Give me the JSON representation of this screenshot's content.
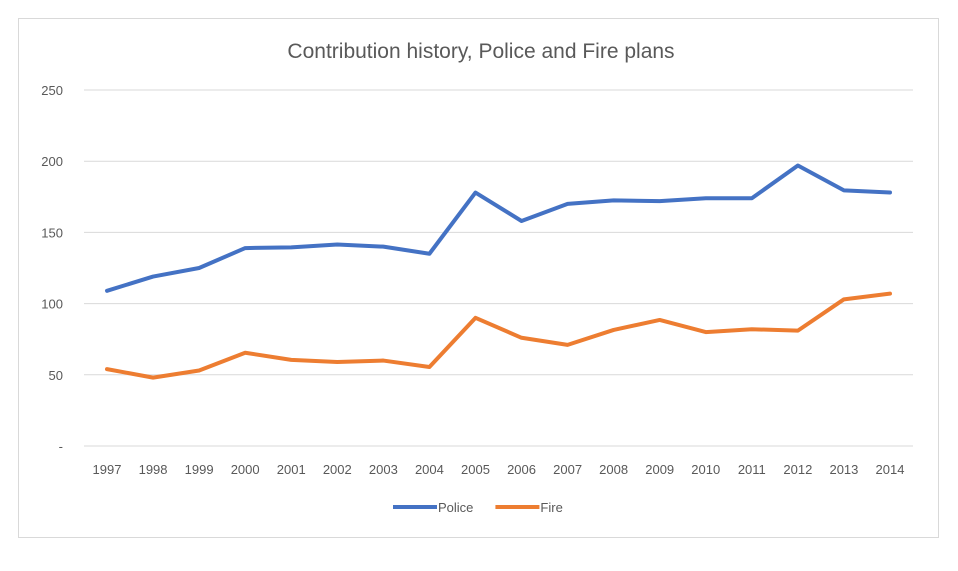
{
  "chart_data": {
    "type": "line",
    "title": "Contribution history, Police and Fire plans",
    "xlabel": "",
    "ylabel": "",
    "categories": [
      "1997",
      "1998",
      "1999",
      "2000",
      "2001",
      "2002",
      "2003",
      "2004",
      "2005",
      "2006",
      "2007",
      "2008",
      "2009",
      "2010",
      "2011",
      "2012",
      "2013",
      "2014"
    ],
    "y_ticks": [
      "-",
      "50",
      "100",
      "150",
      "200",
      "250"
    ],
    "ylim": [
      0,
      250
    ],
    "grid": true,
    "legend_position": "bottom",
    "series": [
      {
        "name": "Police",
        "color": "#4472C4",
        "values": [
          109,
          119,
          125,
          139,
          139.5,
          141.5,
          140,
          135,
          178,
          158,
          170,
          172.5,
          172,
          174,
          174,
          197,
          179.5,
          178
        ]
      },
      {
        "name": "Fire",
        "color": "#ED7D31",
        "values": [
          54,
          48,
          53,
          65.5,
          60.5,
          59,
          60,
          55.5,
          90,
          76,
          71,
          81.5,
          88.5,
          80,
          82,
          81,
          103,
          107
        ]
      }
    ]
  }
}
